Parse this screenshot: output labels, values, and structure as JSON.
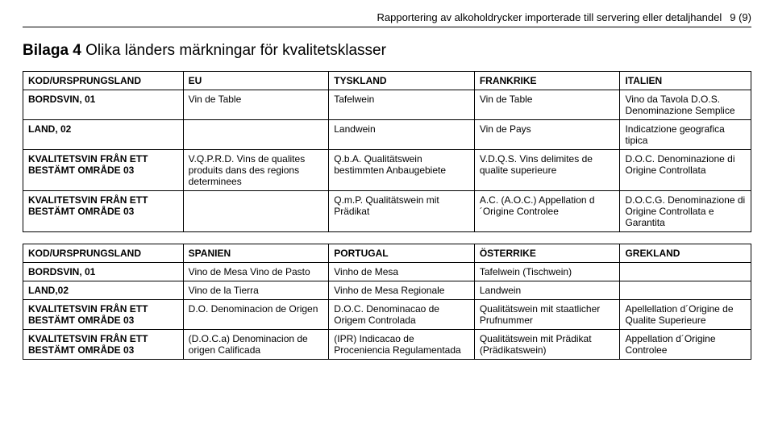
{
  "header": {
    "title": "Rapportering av alkoholdrycker importerade till servering eller detaljhandel",
    "pagenum": "9 (9)"
  },
  "section": {
    "bilaga": "Bilaga 4",
    "rest": " Olika länders märkningar för kvalitetsklasser"
  },
  "table1": {
    "head": [
      "KOD/URSPRUNGSLAND",
      "EU",
      "TYSKLAND",
      "FRANKRIKE",
      "ITALIEN"
    ],
    "rows": [
      [
        "BORDSVIN, 01",
        "Vin de Table",
        "Tafelwein",
        "Vin de Table",
        "Vino da Tavola D.O.S. Denominazione Semplice"
      ],
      [
        "LAND, 02",
        "",
        "Landwein",
        "Vin de Pays",
        "Indicatzione geografica tipica"
      ],
      [
        "KVALITETSVIN FRÅN ETT BESTÄMT OMRÅDE 03",
        "V.Q.P.R.D. Vins de qualites produits dans des regions determinees",
        "Q.b.A. Qualitätswein bestimmten Anbaugebiete",
        "V.D.Q.S. Vins delimites de qualite superieure",
        "D.O.C. Denominazione di Origine Controllata"
      ],
      [
        "KVALITETSVIN FRÅN ETT BESTÄMT OMRÅDE 03",
        "",
        "Q.m.P. Qualitätswein mit Prädikat",
        "A.C. (A.O.C.) Appellation d´Origine Controlee",
        "D.O.C.G. Denominazione di Origine Controllata e Garantita"
      ]
    ]
  },
  "table2": {
    "head": [
      "KOD/URSPRUNGSLAND",
      "SPANIEN",
      "PORTUGAL",
      "ÖSTERRIKE",
      "GREKLAND"
    ],
    "rows": [
      [
        "BORDSVIN, 01",
        "Vino de Mesa Vino de Pasto",
        "Vinho de Mesa",
        "Tafelwein (Tischwein)",
        ""
      ],
      [
        "LAND,02",
        "Vino de la Tierra",
        "Vinho de Mesa Regionale",
        "Landwein",
        ""
      ],
      [
        "KVALITETSVIN FRÅN ETT BESTÄMT OMRÅDE 03",
        "D.O. Denominacion de Origen",
        "D.O.C. Denominacao de Origem Controlada",
        "Qualitätswein mit staatlicher Prufnummer",
        "Apellellation d´Origine de Qualite Superieure"
      ],
      [
        "KVALITETSVIN FRÅN ETT BESTÄMT OMRÅDE 03",
        "(D.O.C.a) Denominacion de origen Calificada",
        "(IPR) Indicacao de Proceniencia Regulamentada",
        "Qualitätswein mit Prädikat (Prädikatswein)",
        "Appellation d´Origine Controlee"
      ]
    ]
  }
}
